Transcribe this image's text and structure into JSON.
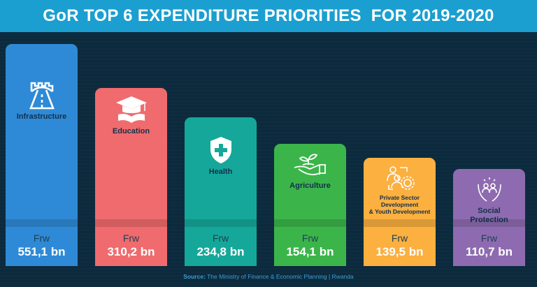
{
  "title": "GoR TOP 6 EXPENDITURE PRIORITIES  FOR 2019-2020",
  "chart_data": {
    "type": "bar",
    "title": "GoR TOP 6 EXPENDITURE PRIORITIES  FOR 2019-2020",
    "unit_prefix": "Frw",
    "categories": [
      "Infrastructure",
      "Education",
      "Health",
      "Agriculture",
      "Private Sector Development & Youth Development",
      "Social Protection"
    ],
    "values": [
      551.1,
      310.2,
      234.8,
      154.1,
      139.5,
      110.7
    ],
    "value_labels": [
      "551,1 bn",
      "310,2 bn",
      "234,8 bn",
      "154,1 bn",
      "139,5 bn",
      "110,7 bn"
    ],
    "colors": [
      "#2e8ad6",
      "#f06b6e",
      "#15a89a",
      "#3bb54a",
      "#fbb040",
      "#8e6bb0"
    ],
    "icons": [
      "road-bridge-icon",
      "graduation-cap-book-icon",
      "medical-shield-icon",
      "plant-in-hand-icon",
      "people-gear-cycle-icon",
      "hands-protecting-people-icon"
    ],
    "label_lines": [
      [
        "Infrastructure"
      ],
      [
        "Education"
      ],
      [
        "Health"
      ],
      [
        "Agriculture"
      ],
      [
        "Private Sector",
        "Development",
        "& Youth Development"
      ],
      [
        "Social",
        "Protection"
      ]
    ]
  },
  "source": {
    "label": "Source:",
    "text": " The Ministry of Finance & Economic Planning | Rwanda"
  }
}
